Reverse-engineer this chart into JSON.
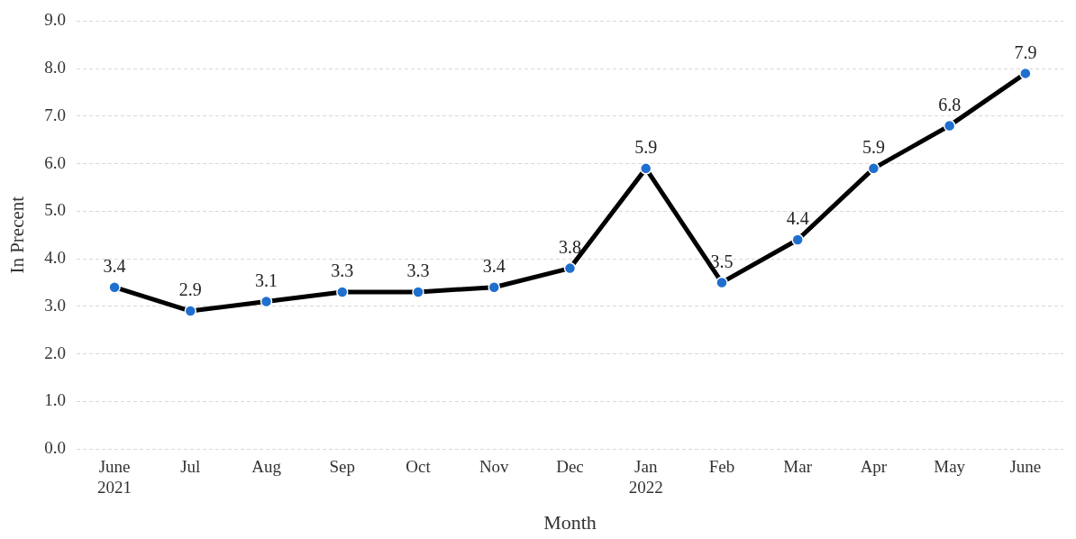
{
  "chart_data": {
    "type": "line",
    "xlabel": "Month",
    "ylabel": "In Precent",
    "categories": [
      "June\n2021",
      "Jul",
      "Aug",
      "Sep",
      "Oct",
      "Nov",
      "Dec",
      "Jan\n2022",
      "Feb",
      "Mar",
      "Apr",
      "May",
      "June"
    ],
    "series": [
      {
        "color": "#000000",
        "values": [
          3.4,
          2.9,
          3.1,
          3.3,
          3.3,
          3.4,
          3.8,
          5.9,
          3.5,
          4.4,
          5.9,
          6.8,
          7.9
        ]
      }
    ],
    "ylim": [
      0,
      9
    ],
    "yticks": [
      {
        "value": 0,
        "label": "0.0"
      },
      {
        "value": 1,
        "label": "1.0"
      },
      {
        "value": 2,
        "label": "2.0"
      },
      {
        "value": 3,
        "label": "3.0"
      },
      {
        "value": 4,
        "label": "4.0"
      },
      {
        "value": 5,
        "label": "5.0"
      },
      {
        "value": 6,
        "label": "6.0"
      },
      {
        "value": 7,
        "label": "7.0"
      },
      {
        "value": 8,
        "label": "8.0"
      },
      {
        "value": 9,
        "label": "9.0"
      }
    ],
    "grid": "y",
    "marker": "circle",
    "line_style": "solid",
    "data_labels": true,
    "legend": false
  }
}
